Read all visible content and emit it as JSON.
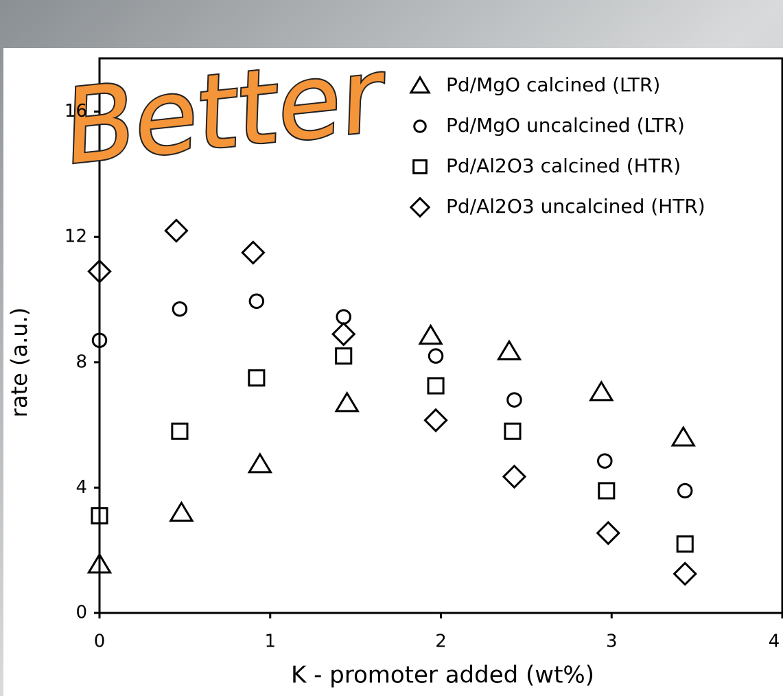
{
  "chart_data": {
    "type": "scatter",
    "annotation": "Better",
    "xlabel": "K - promoter added (wt%)",
    "ylabel": "rate  (a.u.)",
    "xlim": [
      0,
      4
    ],
    "xticks": [
      0,
      1,
      2,
      3,
      4
    ],
    "ylim": [
      0,
      17.7
    ],
    "yticks": [
      0,
      4,
      8,
      12,
      16
    ],
    "grid": false,
    "legend": "upper right",
    "series": [
      {
        "name": "Pd/MgO calcined (LTR)",
        "marker": "triangle",
        "color": "#000000",
        "x": [
          0,
          0.48,
          0.94,
          1.45,
          1.94,
          2.4,
          2.94,
          3.42
        ],
        "values": [
          1.55,
          3.2,
          4.75,
          6.7,
          8.85,
          8.35,
          7.05,
          5.6
        ]
      },
      {
        "name": "Pd/MgO uncalcined (LTR)",
        "marker": "circle",
        "color": "#000000",
        "x": [
          0,
          0.47,
          0.92,
          1.43,
          1.97,
          2.43,
          2.96,
          3.43
        ],
        "values": [
          8.7,
          9.7,
          9.95,
          9.45,
          8.2,
          6.8,
          4.85,
          3.9
        ]
      },
      {
        "name": "Pd/Al2O3 calcined (HTR)",
        "marker": "square",
        "color": "#000000",
        "x": [
          0,
          0.47,
          0.92,
          1.43,
          1.97,
          2.42,
          2.97,
          3.43
        ],
        "values": [
          3.1,
          5.8,
          7.5,
          8.2,
          7.25,
          5.8,
          3.9,
          2.2
        ]
      },
      {
        "name": "Pd/Al2O3 uncalcined (HTR)",
        "marker": "diamond",
        "color": "#000000",
        "x": [
          0,
          0.45,
          0.9,
          1.43,
          1.97,
          2.43,
          2.98,
          3.43
        ],
        "values": [
          10.9,
          12.2,
          11.5,
          8.9,
          6.15,
          4.35,
          2.55,
          1.25
        ]
      }
    ]
  }
}
